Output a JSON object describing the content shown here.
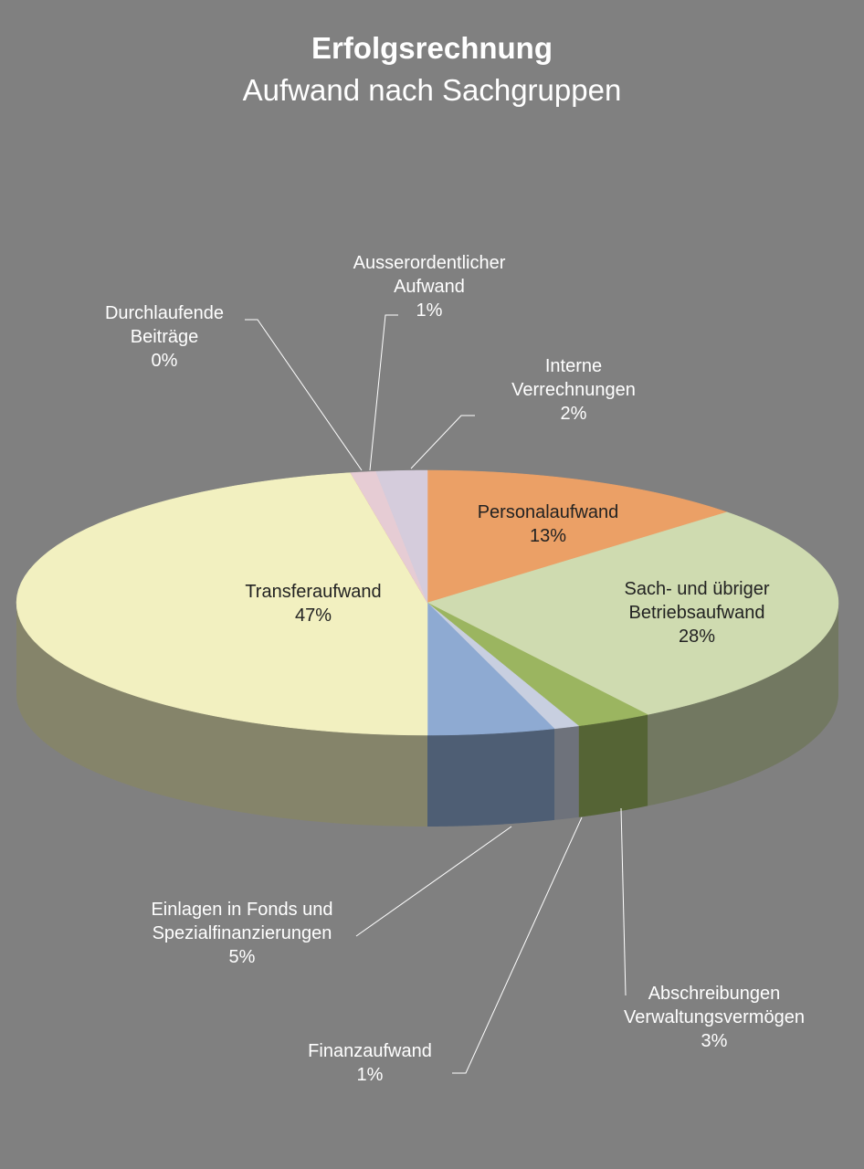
{
  "chart_data": {
    "type": "pie3d",
    "title": "Erfolgsrechnung",
    "subtitle": "Aufwand nach Sachgruppen",
    "categories": [
      "Personalaufwand",
      "Sach- und übriger Betriebsaufwand",
      "Abschreibungen Verwaltungsvermögen",
      "Finanzaufwand",
      "Einlagen in Fonds und Spezialfinanzierungen",
      "Transferaufwand",
      "Durchlaufende Beiträge",
      "Ausserordentlicher Aufwand",
      "Interne Verrechnungen"
    ],
    "values": [
      13,
      28,
      3,
      1,
      5,
      47,
      0,
      1,
      2
    ],
    "value_labels": [
      "13%",
      "28%",
      "3%",
      "1%",
      "5%",
      "47%",
      "0%",
      "1%",
      "2%"
    ],
    "colors": [
      "#eba066",
      "#cfdbb0",
      "#9bb560",
      "#c8cfe0",
      "#8eaad2",
      "#f2f0c0",
      "#f0b070",
      "#e6ccd4",
      "#d5ccdc"
    ]
  }
}
